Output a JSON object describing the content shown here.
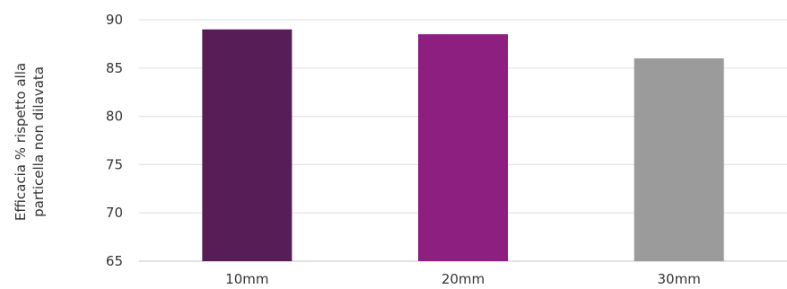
{
  "chart_data": {
    "type": "bar",
    "title": "",
    "xlabel": "",
    "ylabel_lines": [
      "Efficacia % rispetto alla",
      "particella non dilavata"
    ],
    "categories": [
      "10mm",
      "20mm",
      "30mm"
    ],
    "values": [
      89.0,
      88.5,
      86.0
    ],
    "colors": [
      "#561d57",
      "#8c1f80",
      "#9b9b9b"
    ],
    "ylim": [
      65,
      90
    ],
    "yticks": [
      65,
      70,
      75,
      80,
      85,
      90
    ],
    "grid": true,
    "legend": "none"
  }
}
